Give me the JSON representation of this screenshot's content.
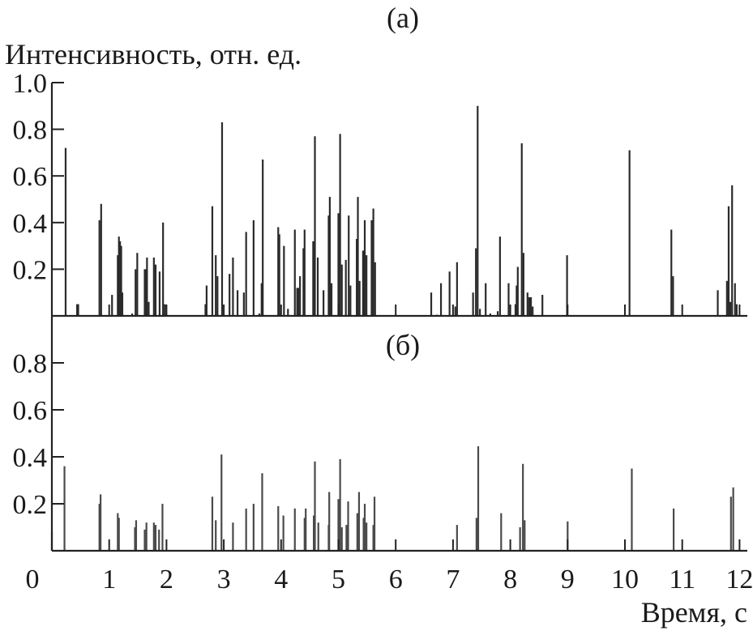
{
  "chart_data": [
    {
      "type": "bar",
      "panel_label": "(а)",
      "ylabel": "Интенсивность, отн. ед.",
      "xlabel": "",
      "xlim": [
        0,
        12
      ],
      "ylim": [
        0,
        1.0
      ],
      "y_ticks": [
        "0.2",
        "0.4",
        "0.6",
        "0.8",
        "1.0"
      ],
      "grid": false,
      "color": "#2b2b2b",
      "x": [
        0.24,
        0.44,
        0.46,
        0.83,
        0.86,
        1.05,
        1.15,
        1.17,
        1.19,
        1.21,
        1.23,
        1.4,
        1.46,
        1.49,
        1.62,
        1.64,
        1.66,
        1.69,
        1.78,
        1.81,
        1.88,
        1.94,
        1.97,
        2.68,
        2.7,
        2.8,
        2.86,
        2.89,
        2.97,
        3.1,
        3.16,
        3.24,
        3.35,
        3.39,
        3.52,
        3.62,
        3.66,
        3.68,
        3.95,
        3.97,
        4.05,
        4.12,
        4.24,
        4.28,
        4.3,
        4.33,
        4.39,
        4.41,
        4.56,
        4.59,
        4.64,
        4.74,
        4.83,
        4.85,
        4.88,
        5.0,
        5.03,
        5.06,
        5.13,
        5.18,
        5.21,
        5.32,
        5.34,
        5.37,
        5.43,
        5.46,
        5.49,
        5.58,
        5.61,
        5.64,
        6.62,
        6.72,
        6.79,
        6.94,
        7.04,
        7.07,
        7.35,
        7.4,
        7.43,
        7.47,
        7.57,
        7.65,
        7.78,
        7.82,
        7.97,
        8.09,
        8.11,
        8.13,
        8.2,
        8.23,
        8.3,
        8.33,
        8.36,
        8.39,
        8.56,
        8.99,
        10.08,
        10.81,
        10.84,
        11.62,
        11.78,
        11.81,
        11.84,
        11.87,
        11.92,
        11.95
      ],
      "values": [
        0.72,
        0.05,
        0.05,
        0.41,
        0.48,
        0.09,
        0.26,
        0.34,
        0.32,
        0.3,
        0.1,
        0.01,
        0.2,
        0.27,
        0.2,
        0.2,
        0.25,
        0.06,
        0.25,
        0.22,
        0.19,
        0.4,
        0.05,
        0.05,
        0.13,
        0.47,
        0.26,
        0.17,
        0.83,
        0.18,
        0.25,
        0.11,
        0.1,
        0.36,
        0.41,
        0.01,
        0.14,
        0.67,
        0.38,
        0.35,
        0.3,
        0.03,
        0.37,
        0.12,
        0.12,
        0.17,
        0.29,
        0.37,
        0.32,
        0.77,
        0.25,
        0.11,
        0.43,
        0.51,
        0.14,
        0.44,
        0.78,
        0.22,
        0.24,
        0.43,
        0.13,
        0.33,
        0.51,
        0.15,
        0.28,
        0.41,
        0.26,
        0.41,
        0.46,
        0.23,
        0.1,
        0.005,
        0.14,
        0.19,
        0.04,
        0.23,
        0.1,
        0.29,
        0.9,
        0.03,
        0.14,
        0.01,
        0.02,
        0.34,
        0.14,
        0.05,
        0.13,
        0.21,
        0.74,
        0.27,
        0.1,
        0.08,
        0.08,
        0.04,
        0.09,
        0.26,
        0.71,
        0.37,
        0.17,
        0.11,
        0.15,
        0.47,
        0.06,
        0.56,
        0.14,
        0.05
      ]
    },
    {
      "type": "bar",
      "panel_label": "(б)",
      "xlabel": "Время, с",
      "ylabel": "",
      "xlim": [
        0,
        12
      ],
      "ylim": [
        0,
        1.0
      ],
      "x_ticks": [
        "0",
        "1",
        "2",
        "3",
        "4",
        "5",
        "6",
        "7",
        "8",
        "9",
        "10",
        "11",
        "12"
      ],
      "y_ticks": [
        "0.2",
        "0.4",
        "0.6",
        "0.8"
      ],
      "grid": false,
      "color": "#4a4a4a",
      "x": [
        0.0,
        0.22,
        0.83,
        0.85,
        1.15,
        1.17,
        1.45,
        1.47,
        1.62,
        1.65,
        1.78,
        1.81,
        1.87,
        1.93,
        2.8,
        2.86,
        2.96,
        3.16,
        3.39,
        3.52,
        3.67,
        3.95,
        4.04,
        4.24,
        4.41,
        4.43,
        4.57,
        4.59,
        4.65,
        4.83,
        4.84,
        5.0,
        5.03,
        5.06,
        5.14,
        5.17,
        5.33,
        5.36,
        5.44,
        5.46,
        5.49,
        5.61,
        5.63,
        7.07,
        7.41,
        7.44,
        7.84,
        8.17,
        8.22,
        8.25,
        9.0,
        10.12,
        10.85,
        11.85,
        11.89
      ],
      "values": [
        0.08,
        0.36,
        0.2,
        0.24,
        0.16,
        0.14,
        0.1,
        0.13,
        0.09,
        0.12,
        0.12,
        0.11,
        0.09,
        0.2,
        0.23,
        0.13,
        0.41,
        0.12,
        0.18,
        0.2,
        0.33,
        0.19,
        0.15,
        0.18,
        0.14,
        0.18,
        0.15,
        0.38,
        0.12,
        0.11,
        0.25,
        0.22,
        0.39,
        0.1,
        0.11,
        0.21,
        0.16,
        0.25,
        0.14,
        0.2,
        0.12,
        0.11,
        0.23,
        0.11,
        0.14,
        0.445,
        0.16,
        0.1,
        0.37,
        0.13,
        0.125,
        0.35,
        0.18,
        0.23,
        0.27
      ]
    }
  ]
}
